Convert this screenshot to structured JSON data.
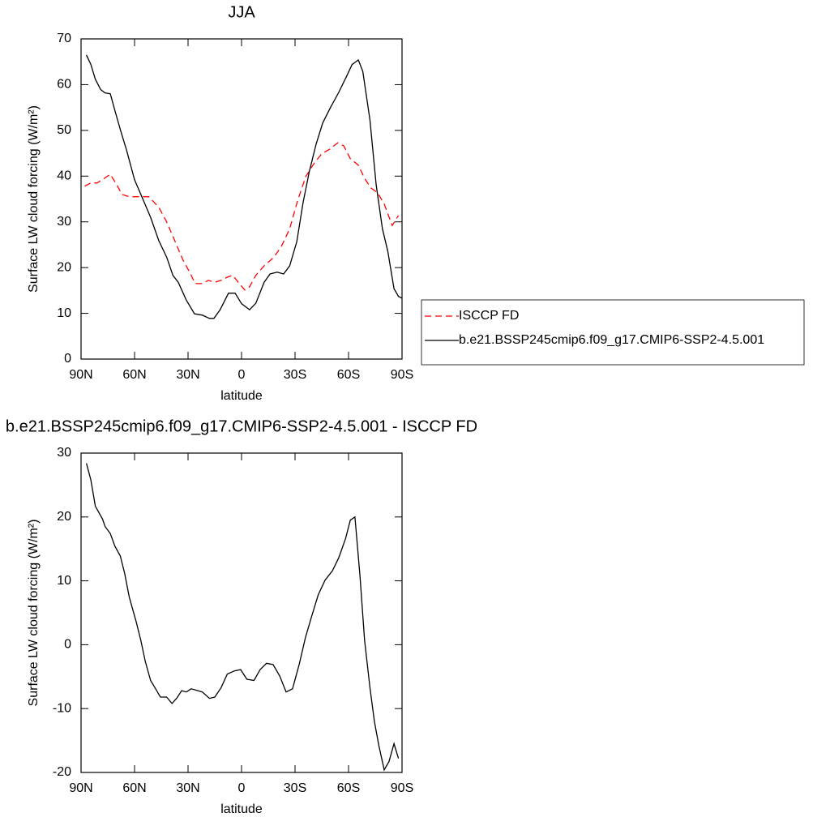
{
  "chart_data": [
    {
      "type": "line",
      "title": "JJA",
      "xlabel": "latitude",
      "ylabel": "Surface LW cloud forcing (W/m²)",
      "xlim": [
        90,
        -90
      ],
      "ylim": [
        0,
        70
      ],
      "xticks": [
        {
          "value": 90,
          "label": "90N"
        },
        {
          "value": 60,
          "label": "60N"
        },
        {
          "value": 30,
          "label": "30N"
        },
        0,
        {
          "value": -30,
          "label": "30S"
        },
        {
          "value": -60,
          "label": "60S"
        },
        {
          "value": -90,
          "label": "90S"
        }
      ],
      "yticks": [
        0,
        10,
        20,
        30,
        40,
        50,
        60,
        70
      ],
      "legend": "right",
      "series": [
        {
          "name": "ISCCP FD",
          "color": "#ff0000",
          "style": "dashed",
          "x": [
            88,
            84.5,
            81,
            77,
            73.6,
            70,
            67,
            63,
            58,
            52,
            46.4,
            42,
            37.6,
            33,
            28.6,
            26,
            22,
            18.6,
            15,
            11.4,
            8,
            5,
            1.8,
            -1.8,
            -4.5,
            -8,
            -12.7,
            -18,
            -22.3,
            -27,
            -31.4,
            -36,
            -40.5,
            -45,
            -49.5,
            -54,
            -57.3,
            -61,
            -65.5,
            -69,
            -72.7,
            -76.4,
            -80,
            -84.5,
            -88
          ],
          "values": [
            37.8,
            38.5,
            38.5,
            39.5,
            40.4,
            38.1,
            36,
            35.5,
            35.5,
            35.5,
            33.2,
            30,
            26,
            21.8,
            18.6,
            16.5,
            16.5,
            17.2,
            16.8,
            17.2,
            17.9,
            18.3,
            16.8,
            15.1,
            15.8,
            18.3,
            20.4,
            22.2,
            24.6,
            28.5,
            34.6,
            39.9,
            42.7,
            44.9,
            45.9,
            47.3,
            46.6,
            43.8,
            42.4,
            39.5,
            37.4,
            36.3,
            33.9,
            29.2,
            31.4
          ]
        },
        {
          "name": "b.e21.BSSP245cmip6.f09_g17.CMIP6-SSP2-4.5.001",
          "color": "#000000",
          "style": "solid",
          "x": [
            87,
            84.5,
            82,
            79,
            76.5,
            73.6,
            71,
            68,
            64.5,
            60,
            54.5,
            51,
            46.4,
            42,
            38.5,
            35.5,
            31,
            26.4,
            22,
            18,
            15.5,
            12,
            7.3,
            3.6,
            0,
            -4.5,
            -8,
            -12.7,
            -16,
            -20,
            -23.6,
            -27,
            -31,
            -34.5,
            -38,
            -41.8,
            -45.5,
            -50,
            -54.5,
            -59,
            -62,
            -65.5,
            -68,
            -72,
            -75.5,
            -79,
            -82,
            -85.5,
            -88,
            -90
          ],
          "values": [
            66.5,
            64.4,
            61.2,
            58.9,
            58.2,
            58,
            54.3,
            50.2,
            45.7,
            39.2,
            34.2,
            31,
            25.9,
            22.3,
            18.3,
            16.8,
            12.9,
            9.9,
            9.6,
            8.9,
            8.9,
            10.8,
            14.4,
            14.4,
            12.1,
            10.8,
            12.2,
            16.8,
            18.6,
            19,
            18.6,
            20.4,
            25.7,
            34.2,
            41,
            47,
            51.6,
            55.1,
            58.3,
            61.9,
            64.4,
            65.4,
            62.9,
            52.3,
            38.1,
            28.5,
            23.6,
            15.4,
            13.7,
            13.3
          ]
        }
      ]
    },
    {
      "type": "line",
      "title": "b.e21.BSSP245cmip6.f09_g17.CMIP6-SSP2-4.5.001 - ISCCP FD",
      "xlabel": "latitude",
      "ylabel": "Surface LW cloud forcing (W/m²)",
      "xlim": [
        90,
        -90
      ],
      "ylim": [
        -20,
        30
      ],
      "xticks": [
        {
          "value": 90,
          "label": "90N"
        },
        {
          "value": 60,
          "label": "60N"
        },
        {
          "value": 30,
          "label": "30N"
        },
        0,
        {
          "value": -30,
          "label": "30S"
        },
        {
          "value": -60,
          "label": "60S"
        },
        {
          "value": -90,
          "label": "90S"
        }
      ],
      "yticks": [
        -20,
        -10,
        0,
        10,
        20,
        30
      ],
      "series": [
        {
          "color": "#000000",
          "style": "solid",
          "x": [
            87,
            84.5,
            82,
            78,
            76.5,
            73.6,
            71,
            68,
            65.5,
            63,
            59,
            56.5,
            54,
            51,
            48.2,
            45.5,
            42,
            39,
            36.4,
            33.6,
            31,
            28.2,
            24.5,
            22,
            18,
            15,
            11.4,
            8,
            4,
            0.5,
            -3,
            -7,
            -10.4,
            -14,
            -17.7,
            -21.4,
            -25,
            -28.6,
            -32.3,
            -35.9,
            -39.6,
            -43,
            -46.8,
            -51,
            -54.5,
            -58.3,
            -61,
            -63.6,
            -66.4,
            -69,
            -72,
            -74.5,
            -77,
            -80,
            -82.7,
            -85.5,
            -88
          ],
          "values": [
            28.4,
            25.8,
            21.7,
            19.7,
            18.5,
            17.4,
            15.4,
            13.9,
            11.1,
            7.5,
            3.5,
            0.7,
            -2.6,
            -5.6,
            -6.9,
            -8.2,
            -8.2,
            -9.2,
            -8.4,
            -7.2,
            -7.4,
            -6.9,
            -7.2,
            -7.4,
            -8.4,
            -8.2,
            -6.7,
            -4.6,
            -4.1,
            -3.9,
            -5.4,
            -5.6,
            -3.9,
            -2.9,
            -3.1,
            -4.9,
            -7.4,
            -6.9,
            -3.1,
            1.2,
            4.7,
            7.8,
            10.1,
            11.6,
            13.6,
            16.6,
            19.5,
            20,
            10.8,
            0.7,
            -6.7,
            -12,
            -15.8,
            -19.6,
            -18.3,
            -15.5,
            -17.8
          ]
        }
      ]
    }
  ]
}
